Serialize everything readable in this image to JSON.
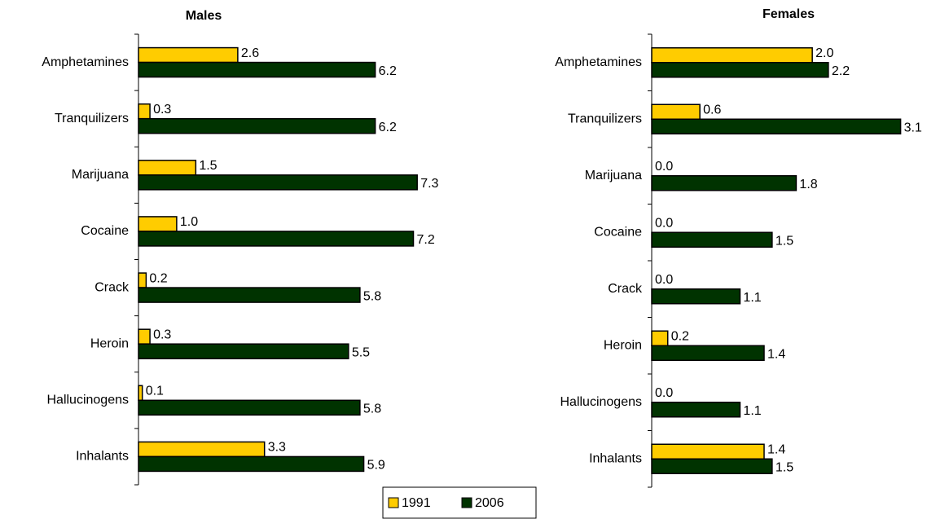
{
  "chart_data": [
    {
      "type": "bar",
      "orientation": "horizontal",
      "title": "Males",
      "categories": [
        "Amphetamines",
        "Tranquilizers",
        "Marijuana",
        "Cocaine",
        "Crack",
        "Heroin",
        "Hallucinogens",
        "Inhalants"
      ],
      "series": [
        {
          "color": "#ffcc00",
          "values": [
            2.6,
            0.3,
            1.5,
            1.0,
            0.2,
            0.3,
            0.1,
            3.3
          ],
          "value_labels": [
            "2.6",
            "0.3",
            "1.5",
            "1.0",
            "0.2",
            "0.3",
            "0.1",
            "3.3"
          ]
        },
        {
          "color": "#003300",
          "values": [
            6.2,
            6.2,
            7.3,
            7.2,
            5.8,
            5.5,
            5.8,
            5.9
          ],
          "value_labels": [
            "6.2",
            "6.2",
            "7.3",
            "7.2",
            "5.8",
            "5.5",
            "5.8",
            "5.9"
          ]
        }
      ],
      "xlim": [
        0,
        8
      ]
    },
    {
      "type": "bar",
      "orientation": "horizontal",
      "title": "Females",
      "categories": [
        "Amphetamines",
        "Tranquilizers",
        "Marijuana",
        "Cocaine",
        "Crack",
        "Heroin",
        "Hallucinogens",
        "Inhalants"
      ],
      "series": [
        {
          "color": "#ffcc00",
          "values": [
            2.0,
            0.6,
            0.0,
            0.0,
            0.0,
            0.2,
            0.0,
            1.4
          ],
          "value_labels": [
            "2.0",
            "0.6",
            "0.0",
            "0.0",
            "0.0",
            "0.2",
            "0.0",
            "1.4"
          ]
        },
        {
          "color": "#003300",
          "values": [
            2.2,
            3.1,
            1.8,
            1.5,
            1.1,
            1.4,
            1.1,
            1.5
          ],
          "value_labels": [
            "2.2",
            "3.1",
            "1.8",
            "1.5",
            "1.1",
            "1.4",
            "1.1",
            "1.5"
          ]
        }
      ],
      "xlim": [
        0,
        3.5
      ]
    }
  ],
  "legend": [
    {
      "name": "1991",
      "color": "#ffcc00"
    },
    {
      "name": "2006",
      "color": "#003300"
    }
  ]
}
